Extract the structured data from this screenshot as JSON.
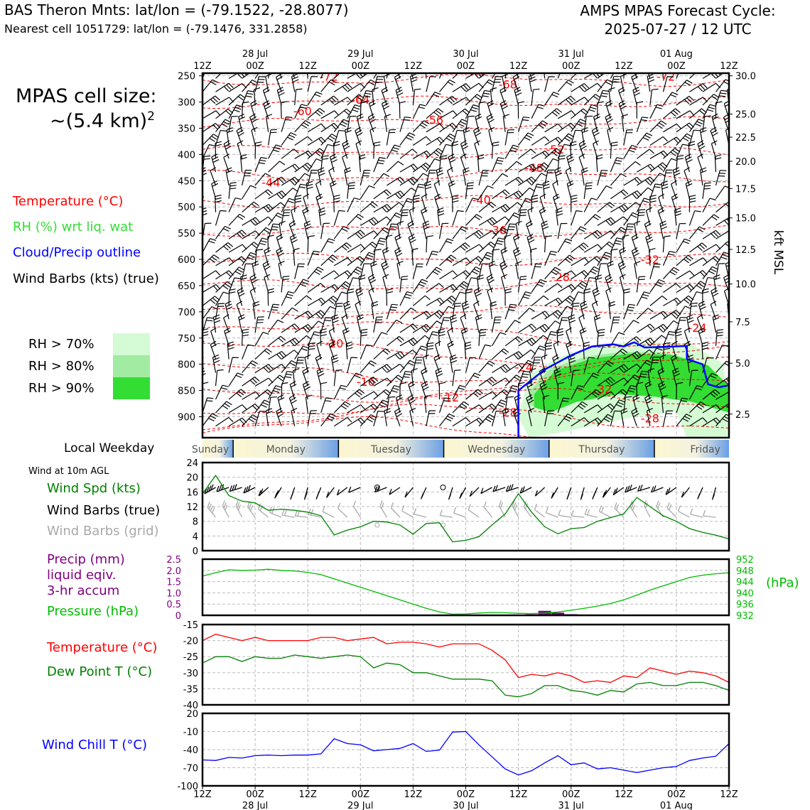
{
  "header": {
    "title": "BAS Theron Mnts: lat/lon = (-79.1522, -28.8077)",
    "subtitle": "Nearest cell 1051729: lat/lon = (-79.1476, 331.2858)",
    "cycle_line1": "AMPS MPAS Forecast Cycle:",
    "cycle_line2": "2025-07-27 / 12 UTC"
  },
  "left_panel": {
    "cell_size_label": "MPAS cell size:",
    "cell_size_value": "~(5.4 km)",
    "cell_size_exp": "2",
    "legend_temperature": "Temperature (°C)",
    "legend_rh": "RH (%) wrt liq. wat",
    "legend_cloud": "Cloud/Precip outline",
    "legend_wind": "Wind Barbs (kts) (true)",
    "rh_70": "RH > 70%",
    "rh_80": "RH > 80%",
    "rh_90": "RH > 90%",
    "local_weekday": "Local Weekday",
    "wind_10m": "Wind at 10m AGL",
    "legend_wind_spd": "Wind Spd (kts)",
    "legend_barbs_true": "Wind Barbs (true)",
    "legend_barbs_grid": "Wind Barbs (grid)",
    "legend_precip_1": "Precip (mm)",
    "legend_precip_2": "liquid eqiv.",
    "legend_precip_3": "3-hr accum",
    "legend_pressure": "Pressure (hPa)",
    "legend_temp2": "Temperature (°C)",
    "legend_dew": "Dew Point T (°C)",
    "legend_windchill": "Wind Chill T (°C)"
  },
  "colors": {
    "temperature": "#ff0000",
    "rh": "#33dd33",
    "cloud": "#0000ff",
    "wind_spd": "#008000",
    "precip": "#800080",
    "pressure": "#00bb00",
    "dewpoint": "#008000",
    "windchill": "#0000ff",
    "rh70": "#d4fbd4",
    "rh80": "#a2eba2",
    "rh90": "#33dd33"
  },
  "chart_data": [
    {
      "id": "time_height",
      "type": "contour",
      "time_ticks_top_row1": [
        "",
        "28 Jul",
        "",
        "29 Jul",
        "",
        "30 Jul",
        "",
        "31 Jul",
        "",
        "01 Aug",
        ""
      ],
      "time_ticks_top_row2": [
        "12Z",
        "00Z",
        "12Z",
        "00Z",
        "12Z",
        "00Z",
        "12Z",
        "00Z",
        "12Z",
        "00Z",
        "12Z"
      ],
      "pressure_ticks": [
        250,
        300,
        350,
        400,
        450,
        500,
        550,
        600,
        650,
        700,
        750,
        800,
        850,
        900
      ],
      "ylim": [
        940,
        245
      ],
      "right_axis_label": "kft MSL",
      "kft_ticks": [
        {
          "p": 250,
          "label": "30.0"
        },
        {
          "p": 323,
          "label": "25.0"
        },
        {
          "p": 367,
          "label": "22.5"
        },
        {
          "p": 413,
          "label": "20.0"
        },
        {
          "p": 465,
          "label": "17.5"
        },
        {
          "p": 521,
          "label": "15.0"
        },
        {
          "p": 581,
          "label": "12.5"
        },
        {
          "p": 647,
          "label": "10.0"
        },
        {
          "p": 719,
          "label": "7.5"
        },
        {
          "p": 798,
          "label": "5.0"
        },
        {
          "p": 895,
          "label": "2.5"
        }
      ],
      "temperature_labels": [
        {
          "x": 0.24,
          "p": 251,
          "label": "-72"
        },
        {
          "x": 0.58,
          "p": 266,
          "label": "-68"
        },
        {
          "x": 0.88,
          "p": 251,
          "label": "-72"
        },
        {
          "x": 0.3,
          "p": 295,
          "label": "-64"
        },
        {
          "x": 0.19,
          "p": 317,
          "label": "-60"
        },
        {
          "x": 0.44,
          "p": 334,
          "label": "-56"
        },
        {
          "x": 0.67,
          "p": 390,
          "label": "-52"
        },
        {
          "x": 0.63,
          "p": 425,
          "label": "-48"
        },
        {
          "x": 0.13,
          "p": 453,
          "label": "-44"
        },
        {
          "x": 0.53,
          "p": 486,
          "label": "-40"
        },
        {
          "x": 0.56,
          "p": 544,
          "label": "-36"
        },
        {
          "x": 0.85,
          "p": 600,
          "label": "-32"
        },
        {
          "x": 0.68,
          "p": 633,
          "label": "-28"
        },
        {
          "x": 0.94,
          "p": 730,
          "label": "-24"
        },
        {
          "x": 0.25,
          "p": 760,
          "label": "-20"
        },
        {
          "x": 0.61,
          "p": 805,
          "label": "-24"
        },
        {
          "x": 0.31,
          "p": 833,
          "label": "-16"
        },
        {
          "x": 0.47,
          "p": 863,
          "label": "-12"
        },
        {
          "x": 0.76,
          "p": 847,
          "label": "-32"
        },
        {
          "x": 0.58,
          "p": 891,
          "label": "-28"
        },
        {
          "x": 0.85,
          "p": 903,
          "label": "-28"
        }
      ],
      "cloud_outline": [
        [
          0.6,
          940
        ],
        [
          0.6,
          850
        ],
        [
          0.65,
          810
        ],
        [
          0.7,
          783
        ],
        [
          0.74,
          766
        ],
        [
          0.78,
          762
        ],
        [
          0.8,
          766
        ],
        [
          0.82,
          758
        ],
        [
          0.84,
          768
        ],
        [
          0.88,
          767
        ],
        [
          0.92,
          765
        ],
        [
          0.92,
          790
        ],
        [
          0.95,
          800
        ],
        [
          0.96,
          838
        ],
        [
          0.98,
          844
        ],
        [
          1.0,
          840
        ]
      ],
      "rh_core": [
        [
          0.62,
          845
        ],
        [
          0.66,
          800
        ],
        [
          0.73,
          777
        ],
        [
          0.8,
          768
        ],
        [
          0.88,
          770
        ],
        [
          0.95,
          790
        ],
        [
          1.0,
          830
        ],
        [
          1.0,
          880
        ],
        [
          0.92,
          860
        ],
        [
          0.85,
          850
        ],
        [
          0.78,
          845
        ],
        [
          0.7,
          860
        ],
        [
          0.65,
          880
        ],
        [
          0.62,
          870
        ]
      ],
      "rh_halo": [
        [
          0.6,
          900
        ],
        [
          0.62,
          820
        ],
        [
          0.68,
          785
        ],
        [
          0.76,
          760
        ],
        [
          0.85,
          758
        ],
        [
          0.93,
          762
        ],
        [
          0.99,
          800
        ],
        [
          1.0,
          940
        ],
        [
          0.92,
          940
        ],
        [
          0.9,
          890
        ],
        [
          0.82,
          900
        ],
        [
          0.75,
          915
        ],
        [
          0.68,
          930
        ],
        [
          0.62,
          940
        ]
      ]
    },
    {
      "id": "weekday_bar",
      "type": "table",
      "days": [
        "Sunday",
        "Monday",
        "Tuesday",
        "Wednesday",
        "Thursday",
        "Friday"
      ]
    },
    {
      "id": "wind_10m",
      "type": "line",
      "title": "Wind at 10m AGL",
      "x": [
        0,
        1,
        2,
        3,
        4,
        5,
        6,
        7,
        8,
        9,
        10,
        11,
        12,
        13,
        14,
        15,
        16,
        17,
        18,
        19,
        20,
        21,
        22,
        23,
        24,
        25,
        26,
        27,
        28,
        29,
        30,
        31,
        32,
        33,
        34,
        35,
        36,
        37,
        38,
        39,
        40
      ],
      "series": [
        {
          "name": "Wind Spd (kts)",
          "values": [
            15.5,
            20.5,
            15,
            13.5,
            13,
            11,
            11.3,
            11,
            10.5,
            9.5,
            4.3,
            5.6,
            6.5,
            8,
            7.8,
            7,
            4.5,
            7.4,
            7.6,
            2.4,
            2.8,
            3.8,
            7,
            10,
            15.5,
            10.5,
            6.5,
            4.6,
            6,
            6.3,
            8,
            9,
            10,
            14.5,
            12,
            9.5,
            8,
            6,
            5,
            4.2,
            3.2
          ]
        }
      ],
      "ylim": [
        0,
        24
      ],
      "yticks": [
        0,
        4,
        8,
        12,
        16,
        20,
        24
      ],
      "calm_markers": [
        13,
        18
      ]
    },
    {
      "id": "precip_pressure",
      "type": "line",
      "series": [
        {
          "name": "Pressure (hPa)",
          "values": [
            946.0,
            947.2,
            948.2,
            948.0,
            948.1,
            948.4,
            948.0,
            947.8,
            947.3,
            946.5,
            945.0,
            943.5,
            942.0,
            940.5,
            939.0,
            937.5,
            936.0,
            934.5,
            933.2,
            932.4,
            932.5,
            932.8,
            933.0,
            932.9,
            932.7,
            932.6,
            932.8,
            933.2,
            933.8,
            934.5,
            935.3,
            936.2,
            937.5,
            939.2,
            941.0,
            942.5,
            944.0,
            945.5,
            946.3,
            946.8,
            947.2
          ]
        }
      ],
      "precip_bars": [
        {
          "x": 25,
          "value": 0.05
        },
        {
          "x": 26,
          "value": 0.2
        },
        {
          "x": 27,
          "value": 0.12
        },
        {
          "x": 28,
          "value": 0.05
        }
      ],
      "precip_ylim": [
        0,
        2.5
      ],
      "precip_ticks": [
        "0",
        "0.5",
        "1.0",
        "1.5",
        "2.0",
        "2.5"
      ],
      "pressure_ylim": [
        932,
        952
      ],
      "pressure_ticks": [
        "932",
        "936",
        "940",
        "944",
        "948",
        "952"
      ],
      "right_label": "(hPa)"
    },
    {
      "id": "temp_dew",
      "type": "line",
      "series": [
        {
          "name": "Temperature (°C)",
          "values": [
            -20,
            -18,
            -19,
            -20,
            -19,
            -20,
            -20,
            -20,
            -20,
            -19,
            -19,
            -20,
            -19.5,
            -19,
            -21,
            -20.5,
            -20.5,
            -21,
            -22,
            -21,
            -21,
            -21,
            -23,
            -26,
            -31.5,
            -30.5,
            -31,
            -30,
            -31,
            -33,
            -32.5,
            -33,
            -31,
            -31.5,
            -28.5,
            -29.5,
            -30.5,
            -29.5,
            -30,
            -31,
            -33
          ]
        },
        {
          "name": "Dew Point T (°C)",
          "values": [
            -27,
            -25,
            -25,
            -26.5,
            -25,
            -25.5,
            -25.5,
            -24.5,
            -25,
            -25.5,
            -25,
            -24.5,
            -25,
            -28.5,
            -27,
            -27.5,
            -30,
            -30,
            -31,
            -32,
            -32,
            -32,
            -32.5,
            -37,
            -37.5,
            -36.5,
            -34,
            -34,
            -35.5,
            -36,
            -37,
            -35.5,
            -36,
            -33.5,
            -33,
            -34,
            -34,
            -33,
            -33,
            -34,
            -35.5
          ]
        }
      ],
      "ylim": [
        -40,
        -15
      ],
      "yticks": [
        "-15",
        "-20",
        "-25",
        "-30",
        "-35",
        "-40"
      ]
    },
    {
      "id": "wind_chill",
      "type": "line",
      "series": [
        {
          "name": "Wind Chill T (°C)",
          "values": [
            -57,
            -58,
            -53,
            -54,
            -50,
            -49,
            -50,
            -49,
            -49,
            -47,
            -22,
            -30,
            -32,
            -42,
            -40,
            -38,
            -30,
            -43,
            -41,
            -11,
            -10,
            -32,
            -52,
            -72,
            -82,
            -75,
            -62,
            -50,
            -65,
            -62,
            -72,
            -70,
            -74,
            -78,
            -74,
            -70,
            -68,
            -58,
            -54,
            -51,
            -30
          ]
        }
      ],
      "ylim": [
        -100,
        20
      ],
      "yticks": [
        "20",
        "-10",
        "-40",
        "-70",
        "-100"
      ],
      "time_ticks_bottom_row1": [
        "12Z",
        "00Z",
        "12Z",
        "00Z",
        "12Z",
        "00Z",
        "12Z",
        "00Z",
        "12Z",
        "00Z",
        "12Z"
      ],
      "time_ticks_bottom_row2": [
        "",
        "28 Jul",
        "",
        "29 Jul",
        "",
        "30 Jul",
        "",
        "31 Jul",
        "",
        "01 Aug",
        ""
      ]
    }
  ]
}
